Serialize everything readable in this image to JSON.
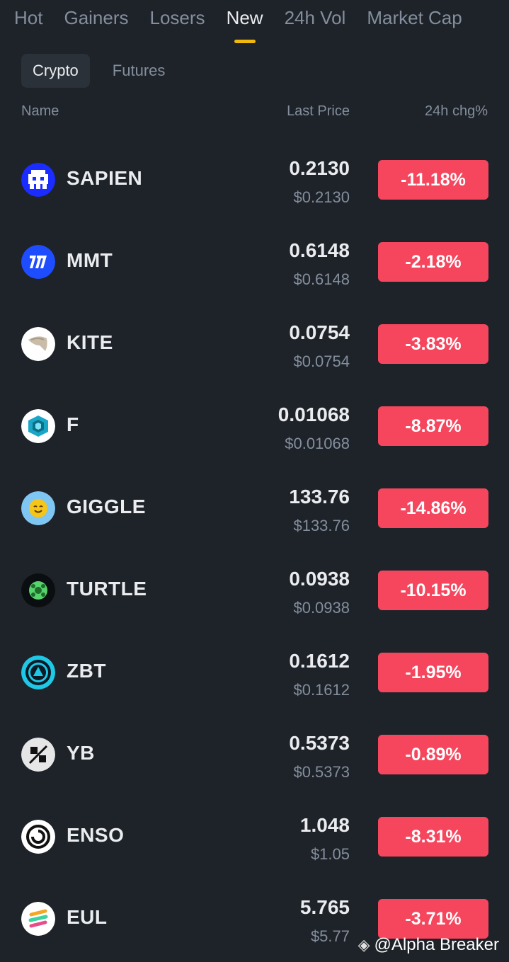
{
  "tabs": [
    {
      "label": "Hot"
    },
    {
      "label": "Gainers"
    },
    {
      "label": "Losers"
    },
    {
      "label": "New",
      "active": true
    },
    {
      "label": "24h Vol"
    },
    {
      "label": "Market Cap"
    }
  ],
  "subtabs": [
    {
      "label": "Crypto",
      "active": true
    },
    {
      "label": "Futures"
    }
  ],
  "headers": {
    "name": "Name",
    "last_price": "Last Price",
    "chg": "24h chg%"
  },
  "rows": [
    {
      "symbol": "SAPIEN",
      "price": "0.2130",
      "usd": "$0.2130",
      "chg": "-11.18%",
      "icon": "sapien-icon"
    },
    {
      "symbol": "MMT",
      "price": "0.6148",
      "usd": "$0.6148",
      "chg": "-2.18%",
      "icon": "mmt-icon"
    },
    {
      "symbol": "KITE",
      "price": "0.0754",
      "usd": "$0.0754",
      "chg": "-3.83%",
      "icon": "kite-icon"
    },
    {
      "symbol": "F",
      "price": "0.01068",
      "usd": "$0.01068",
      "chg": "-8.87%",
      "icon": "f-icon"
    },
    {
      "symbol": "GIGGLE",
      "price": "133.76",
      "usd": "$133.76",
      "chg": "-14.86%",
      "icon": "giggle-icon"
    },
    {
      "symbol": "TURTLE",
      "price": "0.0938",
      "usd": "$0.0938",
      "chg": "-10.15%",
      "icon": "turtle-icon"
    },
    {
      "symbol": "ZBT",
      "price": "0.1612",
      "usd": "$0.1612",
      "chg": "-1.95%",
      "icon": "zbt-icon"
    },
    {
      "symbol": "YB",
      "price": "0.5373",
      "usd": "$0.5373",
      "chg": "-0.89%",
      "icon": "yb-icon"
    },
    {
      "symbol": "ENSO",
      "price": "1.048",
      "usd": "$1.05",
      "chg": "-8.31%",
      "icon": "enso-icon"
    },
    {
      "symbol": "EUL",
      "price": "5.765",
      "usd": "$5.77",
      "chg": "-3.71%",
      "icon": "eul-icon"
    }
  ],
  "colors": {
    "background": "#1e2329",
    "negative": "#f6465d",
    "accent": "#f0b90b",
    "muted": "#848e9c"
  },
  "watermark": {
    "text": "@Alpha Breaker"
  }
}
